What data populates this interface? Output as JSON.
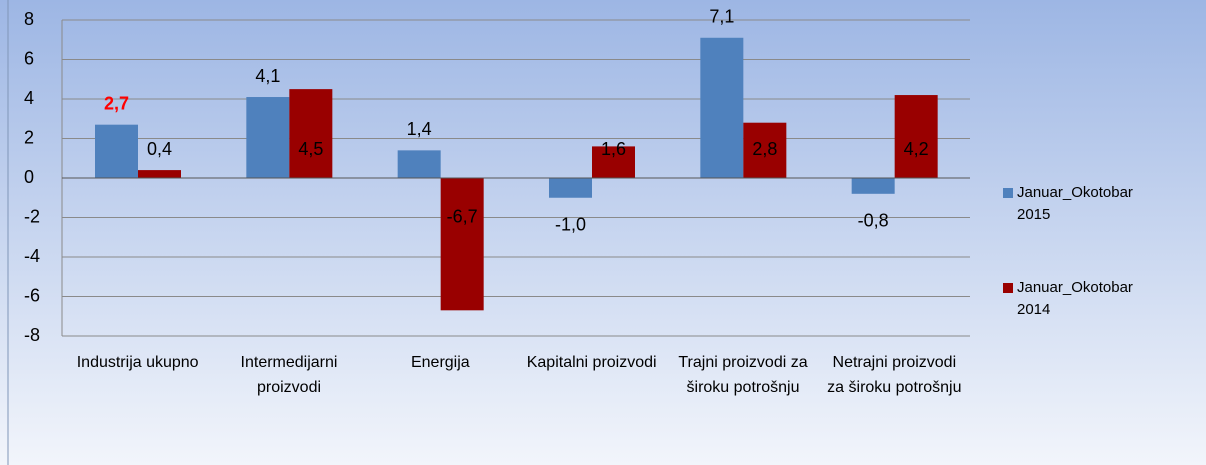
{
  "chart_data": {
    "type": "bar",
    "categories": [
      "Industrija ukupno",
      "Intermedijarni proizvodi",
      "Energija",
      "Kapitalni proizvodi",
      "Trajni proizvodi za široku potrošnju",
      "Netrajni proizvodi za široku potrošnju"
    ],
    "series": [
      {
        "name": "Januar_Okotobar 2015",
        "color": "#4f81bd",
        "values": [
          2.7,
          4.1,
          1.4,
          -1.0,
          7.1,
          -0.8
        ],
        "value_labels": [
          "2,7",
          "4,1",
          "1,4",
          "-1,0",
          "7,1",
          "-0,8"
        ]
      },
      {
        "name": "Januar_Okotobar 2014",
        "color": "#990000",
        "values": [
          0.4,
          4.5,
          -6.7,
          1.6,
          2.8,
          4.2
        ],
        "value_labels": [
          "0,4",
          "4,5",
          "-6,7",
          "1,6",
          "2,8",
          "4,2"
        ]
      }
    ],
    "highlight_label": {
      "series": 0,
      "index": 0,
      "color": "#ff0000"
    },
    "ylim": [
      -8,
      8
    ],
    "yticks": [
      -8,
      -6,
      -4,
      -2,
      0,
      2,
      4,
      6,
      8
    ],
    "grid": true,
    "legend": "right"
  }
}
